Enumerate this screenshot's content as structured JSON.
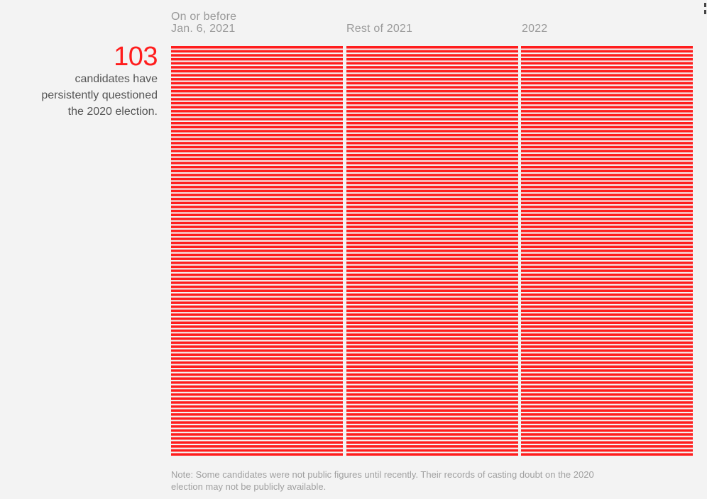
{
  "summary": {
    "count": "103",
    "description_lines": [
      "candidates have",
      "persistently questioned",
      "the 2020 election."
    ]
  },
  "note_lines": [
    "Note: Some candidates were not public figures until recently. Their records of casting doubt on the 2020",
    "election may not be publicly available."
  ],
  "colors": {
    "accent": "#ff1d1d",
    "background": "#f3f3f3",
    "header_text": "#9a9a9a",
    "body_text": "#555555"
  },
  "chart_data": {
    "type": "table",
    "title": "103 candidates have persistently questioned the 2020 election.",
    "categories": [
      {
        "line1": "On or before",
        "line2": "Jan. 6, 2021"
      },
      {
        "line1": "",
        "line2": "Rest of 2021"
      },
      {
        "line1": "",
        "line2": "2022"
      }
    ],
    "total_candidates": 103,
    "fill": "all rows marked in every period"
  }
}
